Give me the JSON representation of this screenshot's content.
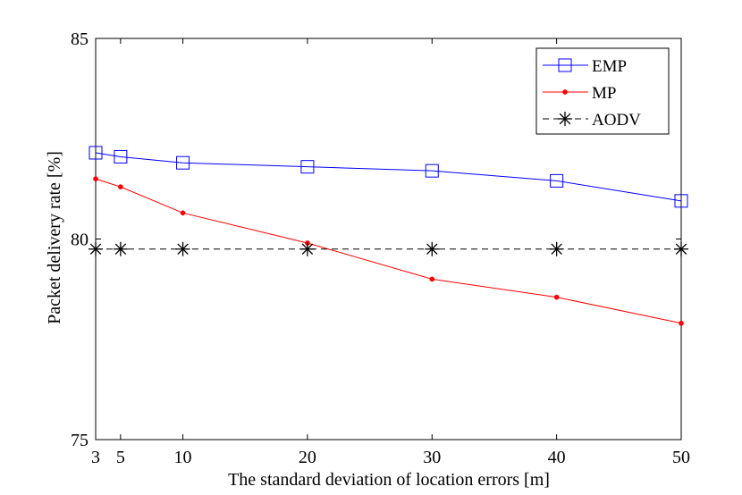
{
  "chart_data": {
    "type": "line",
    "title": "",
    "xlabel": "The standard deviation of location errors [m]",
    "ylabel": "Packet delivery rate [%]",
    "x": [
      3,
      5,
      10,
      20,
      30,
      40,
      50
    ],
    "xticks": [
      3,
      5,
      10,
      20,
      30,
      40,
      50
    ],
    "yticks": [
      75,
      80,
      85
    ],
    "xlim": [
      3,
      50
    ],
    "ylim": [
      75,
      85
    ],
    "grid": false,
    "legend_position": "top-right",
    "series": [
      {
        "name": "EMP",
        "values": [
          82.15,
          82.05,
          81.9,
          81.8,
          81.7,
          81.45,
          80.95
        ],
        "color": "#0000ff",
        "marker": "square",
        "line": "solid"
      },
      {
        "name": "MP",
        "values": [
          81.5,
          81.3,
          80.65,
          79.9,
          79.0,
          78.55,
          77.9
        ],
        "color": "#ff0000",
        "marker": "dot",
        "line": "solid"
      },
      {
        "name": "AODV",
        "values": [
          79.75,
          79.75,
          79.75,
          79.75,
          79.75,
          79.75,
          79.75
        ],
        "color": "#000000",
        "marker": "asterisk",
        "line": "dashed"
      }
    ]
  }
}
